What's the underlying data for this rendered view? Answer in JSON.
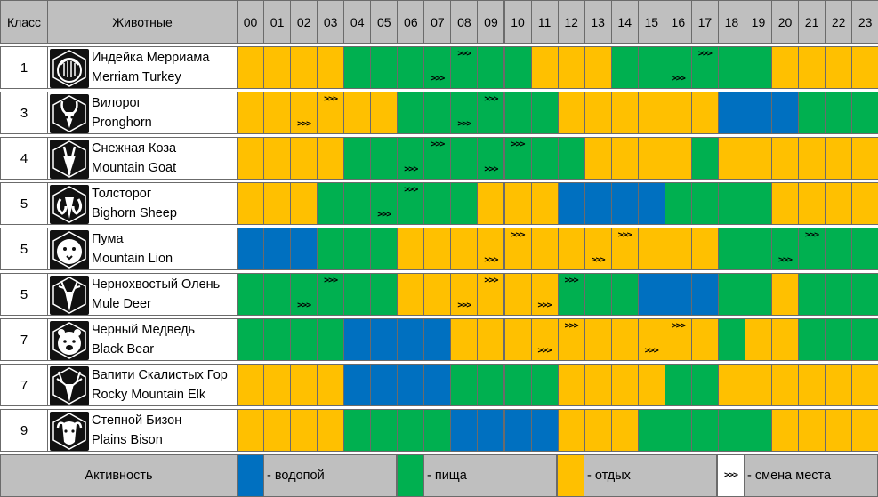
{
  "header": {
    "class_label": "Класс",
    "animals_label": "Животные",
    "hours": [
      "00",
      "01",
      "02",
      "03",
      "04",
      "05",
      "06",
      "07",
      "08",
      "09",
      "10",
      "11",
      "12",
      "13",
      "14",
      "15",
      "16",
      "17",
      "18",
      "19",
      "20",
      "21",
      "22",
      "23"
    ]
  },
  "colors": {
    "water": "#0070c0",
    "feed": "#00b050",
    "rest": "#ffc000"
  },
  "move_marker": ">>>",
  "animals": [
    {
      "class": "1",
      "name_ru": "Индейка Мерриама",
      "name_en": "Merriam Turkey",
      "icon": "turkey-icon",
      "hours": [
        "rest",
        "rest",
        "rest",
        "rest",
        "feed",
        "feed",
        "feed",
        "feed",
        "feed",
        "feed",
        "feed",
        "rest",
        "rest",
        "rest",
        "feed",
        "feed",
        "feed",
        "feed",
        "feed",
        "feed",
        "rest",
        "rest",
        "rest",
        "rest"
      ],
      "moves": [
        {
          "h": 7,
          "pos": "bot"
        },
        {
          "h": 8,
          "pos": "top"
        },
        {
          "h": 16,
          "pos": "bot"
        },
        {
          "h": 17,
          "pos": "top"
        }
      ]
    },
    {
      "class": "3",
      "name_ru": "Вилорог",
      "name_en": "Pronghorn",
      "icon": "pronghorn-icon",
      "hours": [
        "rest",
        "rest",
        "rest",
        "rest",
        "rest",
        "rest",
        "feed",
        "feed",
        "feed",
        "feed",
        "feed",
        "feed",
        "rest",
        "rest",
        "rest",
        "rest",
        "rest",
        "rest",
        "water",
        "water",
        "water",
        "feed",
        "feed",
        "feed"
      ],
      "moves": [
        {
          "h": 2,
          "pos": "bot"
        },
        {
          "h": 3,
          "pos": "top"
        },
        {
          "h": 8,
          "pos": "bot"
        },
        {
          "h": 9,
          "pos": "top"
        }
      ]
    },
    {
      "class": "4",
      "name_ru": "Снежная Коза",
      "name_en": "Mountain Goat",
      "icon": "goat-icon",
      "hours": [
        "rest",
        "rest",
        "rest",
        "rest",
        "feed",
        "feed",
        "feed",
        "feed",
        "feed",
        "feed",
        "feed",
        "feed",
        "feed",
        "rest",
        "rest",
        "rest",
        "rest",
        "feed",
        "rest",
        "rest",
        "rest",
        "rest",
        "rest",
        "rest"
      ],
      "moves": [
        {
          "h": 6,
          "pos": "bot"
        },
        {
          "h": 7,
          "pos": "top"
        },
        {
          "h": 9,
          "pos": "bot"
        },
        {
          "h": 10,
          "pos": "top"
        }
      ]
    },
    {
      "class": "5",
      "name_ru": "Толсторог",
      "name_en": "Bighorn Sheep",
      "icon": "sheep-icon",
      "hours": [
        "rest",
        "rest",
        "rest",
        "feed",
        "feed",
        "feed",
        "feed",
        "feed",
        "feed",
        "rest",
        "rest",
        "rest",
        "water",
        "water",
        "water",
        "water",
        "feed",
        "feed",
        "feed",
        "feed",
        "rest",
        "rest",
        "rest",
        "rest"
      ],
      "moves": [
        {
          "h": 5,
          "pos": "bot"
        },
        {
          "h": 6,
          "pos": "top"
        }
      ]
    },
    {
      "class": "5",
      "name_ru": "Пума",
      "name_en": "Mountain Lion",
      "icon": "lion-icon",
      "hours": [
        "water",
        "water",
        "water",
        "feed",
        "feed",
        "feed",
        "rest",
        "rest",
        "rest",
        "rest",
        "rest",
        "rest",
        "rest",
        "rest",
        "rest",
        "rest",
        "rest",
        "rest",
        "feed",
        "feed",
        "feed",
        "feed",
        "feed",
        "feed"
      ],
      "moves": [
        {
          "h": 9,
          "pos": "bot"
        },
        {
          "h": 10,
          "pos": "top"
        },
        {
          "h": 13,
          "pos": "bot"
        },
        {
          "h": 14,
          "pos": "top"
        },
        {
          "h": 20,
          "pos": "bot"
        },
        {
          "h": 21,
          "pos": "top"
        }
      ]
    },
    {
      "class": "5",
      "name_ru": "Чернохвостый Олень",
      "name_en": "Mule Deer",
      "icon": "deer-icon",
      "hours": [
        "feed",
        "feed",
        "feed",
        "feed",
        "feed",
        "feed",
        "rest",
        "rest",
        "rest",
        "rest",
        "rest",
        "rest",
        "feed",
        "feed",
        "feed",
        "water",
        "water",
        "water",
        "feed",
        "feed",
        "rest",
        "feed",
        "feed",
        "feed"
      ],
      "moves": [
        {
          "h": 2,
          "pos": "bot"
        },
        {
          "h": 3,
          "pos": "top"
        },
        {
          "h": 8,
          "pos": "bot"
        },
        {
          "h": 9,
          "pos": "top"
        },
        {
          "h": 11,
          "pos": "bot"
        },
        {
          "h": 12,
          "pos": "top"
        }
      ]
    },
    {
      "class": "7",
      "name_ru": "Черный Медведь",
      "name_en": "Black Bear",
      "icon": "bear-icon",
      "hours": [
        "feed",
        "feed",
        "feed",
        "feed",
        "water",
        "water",
        "water",
        "water",
        "rest",
        "rest",
        "rest",
        "rest",
        "rest",
        "rest",
        "rest",
        "rest",
        "rest",
        "rest",
        "feed",
        "rest",
        "rest",
        "feed",
        "feed",
        "feed"
      ],
      "moves": [
        {
          "h": 11,
          "pos": "bot"
        },
        {
          "h": 12,
          "pos": "top"
        },
        {
          "h": 15,
          "pos": "bot"
        },
        {
          "h": 16,
          "pos": "top"
        }
      ]
    },
    {
      "class": "7",
      "name_ru": "Вапити Скалистых Гор",
      "name_en": "Rocky Mountain Elk",
      "icon": "elk-icon",
      "hours": [
        "rest",
        "rest",
        "rest",
        "rest",
        "water",
        "water",
        "water",
        "water",
        "feed",
        "feed",
        "feed",
        "feed",
        "rest",
        "rest",
        "rest",
        "rest",
        "feed",
        "feed",
        "rest",
        "rest",
        "rest",
        "rest",
        "rest",
        "rest"
      ],
      "moves": []
    },
    {
      "class": "9",
      "name_ru": "Степной Бизон",
      "name_en": "Plains Bison",
      "icon": "bison-icon",
      "hours": [
        "rest",
        "rest",
        "rest",
        "rest",
        "feed",
        "feed",
        "feed",
        "feed",
        "water",
        "water",
        "water",
        "water",
        "rest",
        "rest",
        "rest",
        "feed",
        "feed",
        "feed",
        "feed",
        "feed",
        "rest",
        "rest",
        "rest",
        "rest"
      ],
      "moves": []
    }
  ],
  "legend": {
    "title": "Активность",
    "water": "- водопой",
    "feed": "- пища",
    "rest": "- отдых",
    "move": "- смена места"
  }
}
